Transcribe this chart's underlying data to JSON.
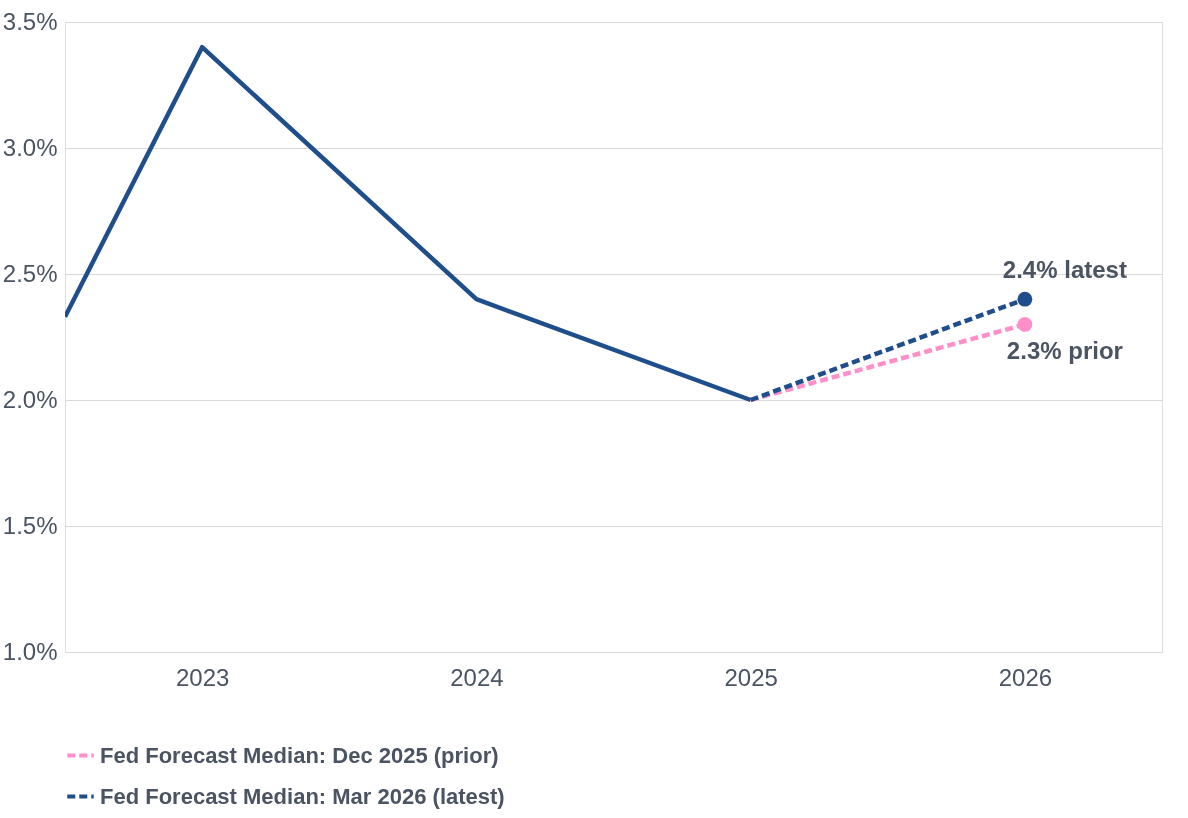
{
  "chart_data": {
    "type": "line",
    "xlim": [
      2022.5,
      2026.5
    ],
    "xticks": [
      2023,
      2024,
      2025,
      2026
    ],
    "ylim": [
      1.0,
      3.5
    ],
    "yticks": [
      {
        "value": 1.0,
        "label": "1.0%"
      },
      {
        "value": 1.5,
        "label": "1.5%"
      },
      {
        "value": 2.0,
        "label": "2.0%"
      },
      {
        "value": 2.5,
        "label": "2.5%"
      },
      {
        "value": 3.0,
        "label": "3.0%"
      },
      {
        "value": 3.5,
        "label": "3.5%"
      }
    ],
    "grid": "y",
    "legend": "bottom",
    "line_style": "solid",
    "series": [
      {
        "color": "#1f4e8c",
        "x": [
          2022.5,
          2023,
          2024,
          2025
        ],
        "values": [
          2.33,
          3.4,
          2.4,
          2.0
        ]
      },
      {
        "name": "Fed Forecast Median: Dec 2025 (prior)",
        "color": "#ff8fc8",
        "line_style": "dashed",
        "x": [
          2025,
          2026
        ],
        "values": [
          2.0,
          2.3
        ]
      },
      {
        "name": "Fed Forecast Median: Mar 2026 (latest)",
        "color": "#1f4e8c",
        "line_style": "dashed",
        "x": [
          2025,
          2026
        ],
        "values": [
          2.0,
          2.4
        ]
      },
      {
        "type": "scatter",
        "marker": "circle",
        "color": "#ff8fc8",
        "x": [
          2026
        ],
        "values": [
          2.3
        ]
      },
      {
        "type": "scatter",
        "marker": "circle",
        "color": "#1f4e8c",
        "x": [
          2026
        ],
        "values": [
          2.4
        ]
      }
    ],
    "annotations": [
      {
        "text": "2.4% latest",
        "x": 2026,
        "y": 2.4
      },
      {
        "text": "2.3% prior",
        "x": 2026,
        "y": 2.3
      }
    ]
  }
}
